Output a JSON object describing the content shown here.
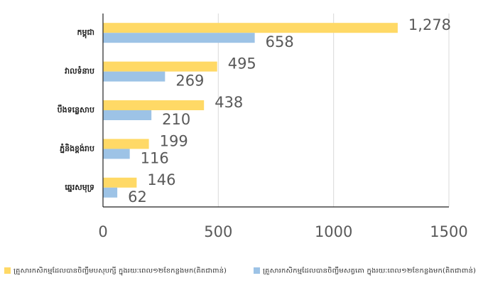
{
  "chart_data": {
    "type": "bar",
    "orientation": "horizontal",
    "categories": [
      "កម្ពុជា",
      "វាលទំនាប",
      "បឹងទន្លេសាប",
      "ភ្នំនិងខ្ពង់រាប",
      "ឆ្នេរសមុទ្រ"
    ],
    "series": [
      {
        "name": "គ្រួសារកសិកម្មដែលបានចិញ្ចឹមបសុបក្សី ក្នុងរយៈពេល១២ខែកន្លងមក(គិតជាពាន់)",
        "color": "#ffd966",
        "values": [
          1278,
          495,
          438,
          199,
          146
        ],
        "value_labels": [
          "1,278",
          "495",
          "438",
          "199",
          "146"
        ]
      },
      {
        "name": "គ្រួសារកសិកម្មដែលបានចិញ្ចឹមសត្វគោ ក្នុងរយៈពេល១២ខែកន្លងមក(គិតជាពាន់)",
        "color": "#9dc3e6",
        "values": [
          658,
          269,
          210,
          116,
          62
        ]
      }
    ],
    "xlim": [
      0,
      1500
    ],
    "xticks": [
      0,
      500,
      1000,
      1500
    ],
    "grid": true,
    "legend": "bottom"
  }
}
